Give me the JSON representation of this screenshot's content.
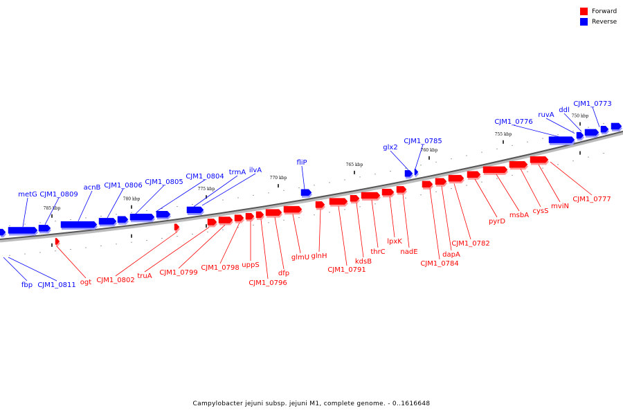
{
  "legend": {
    "forward_label": "Forward",
    "reverse_label": "Reverse",
    "forward_color": "#ff0000",
    "reverse_color": "#0000ff"
  },
  "caption": "Campylobacter jejuni subsp. jejuni M1, complete genome. - 0..1616648",
  "scale_labels": [
    "785 kbp",
    "780 kbp",
    "775 kbp",
    "770 kbp",
    "765 kbp",
    "760 kbp",
    "755 kbp",
    "750 kbp"
  ],
  "reverse_genes": [
    "metG",
    "CJM1_0809",
    "acnB",
    "CJM1_0806",
    "CJM1_0805",
    "CJM1_0804",
    "trmA",
    "ilvA",
    "fliP",
    "glx2",
    "CJM1_0785",
    "CJM1_0776",
    "ruvA",
    "ddl",
    "CJM1_0773",
    "fbp",
    "CJM1_0811"
  ],
  "forward_genes": [
    "ogt",
    "CJM1_0802",
    "truA",
    "CJM1_0799",
    "CJM1_0798",
    "uppS",
    "CJM1_0796",
    "dfp",
    "glmU",
    "glnH",
    "CJM1_0791",
    "kdsB",
    "thrC",
    "lpxK",
    "nadE",
    "CJM1_0784",
    "dapA",
    "CJM1_0782",
    "pyrD",
    "msbA",
    "cysS",
    "mviN",
    "CJM1_0777"
  ]
}
